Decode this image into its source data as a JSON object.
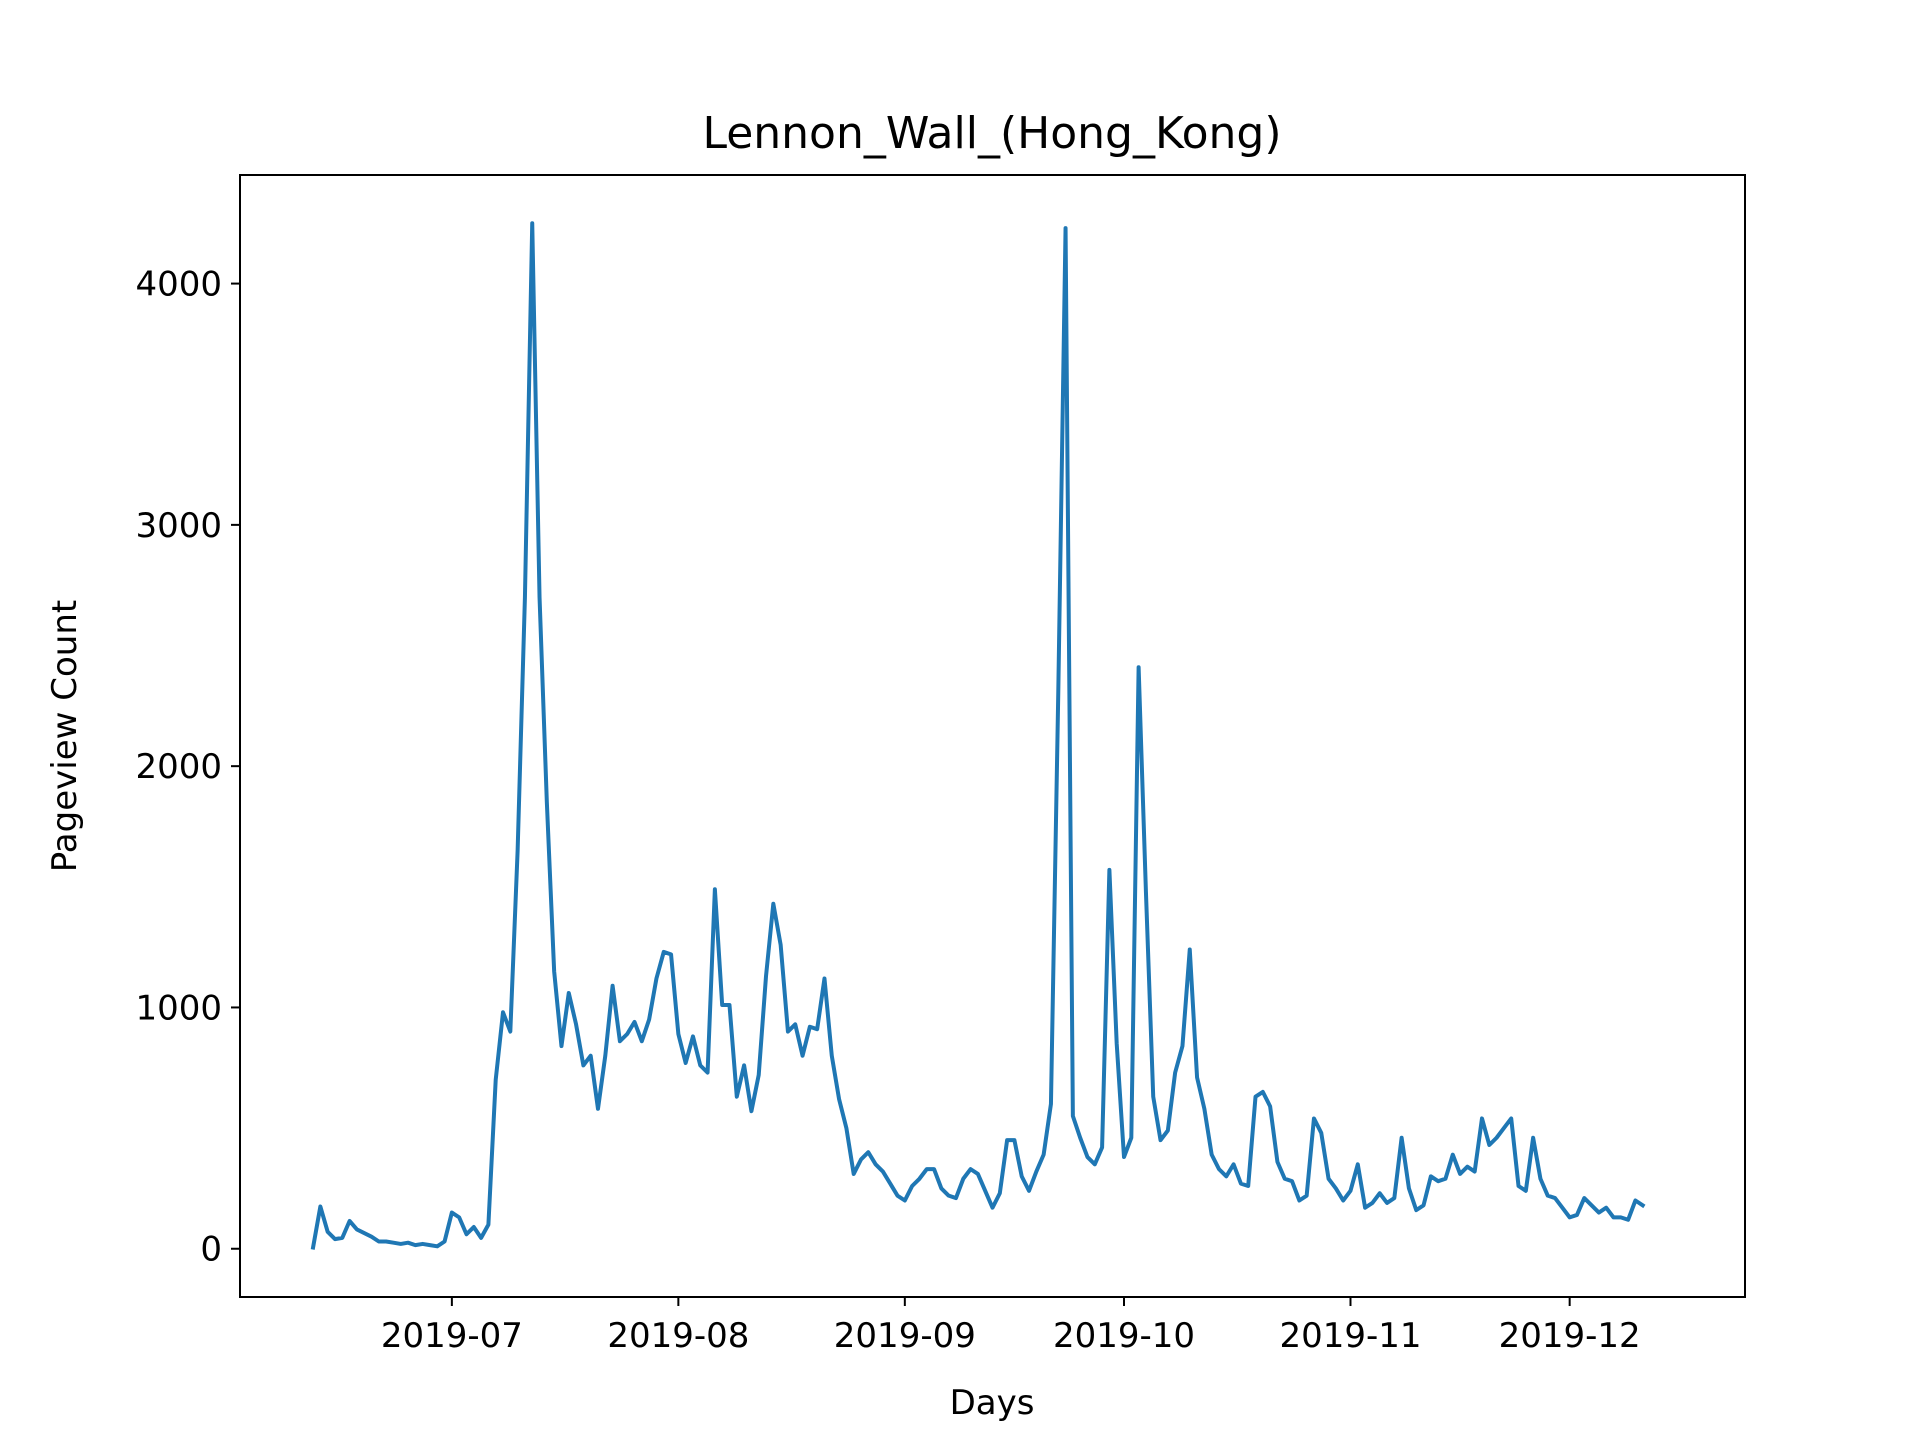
{
  "chart_data": {
    "type": "line",
    "title": "Lennon_Wall_(Hong_Kong)",
    "xlabel": "Days",
    "ylabel": "Pageview Count",
    "x_start": "2019-06-12",
    "x_step_days": 1,
    "xlim_days": [
      -10,
      196
    ],
    "ylim": [
      -200,
      4450
    ],
    "yticks": [
      0,
      1000,
      2000,
      3000,
      4000
    ],
    "xticks": [
      {
        "label": "2019-07",
        "day": 19
      },
      {
        "label": "2019-08",
        "day": 50
      },
      {
        "label": "2019-09",
        "day": 81
      },
      {
        "label": "2019-10",
        "day": 111
      },
      {
        "label": "2019-11",
        "day": 142
      },
      {
        "label": "2019-12",
        "day": 172
      }
    ],
    "grid": false,
    "line_color": "#1f77b4",
    "series": [
      {
        "name": "Lennon_Wall_(Hong_Kong)",
        "values": [
          5,
          175,
          70,
          40,
          45,
          115,
          80,
          65,
          50,
          30,
          30,
          25,
          20,
          25,
          15,
          20,
          15,
          10,
          30,
          150,
          130,
          60,
          90,
          45,
          100,
          700,
          980,
          900,
          1650,
          2700,
          4250,
          2700,
          1850,
          1150,
          840,
          1060,
          930,
          760,
          800,
          580,
          800,
          1090,
          860,
          890,
          940,
          860,
          950,
          1120,
          1230,
          1220,
          890,
          770,
          880,
          760,
          730,
          1490,
          1010,
          1010,
          630,
          760,
          570,
          720,
          1130,
          1430,
          1260,
          900,
          930,
          800,
          920,
          910,
          1120,
          800,
          620,
          500,
          310,
          370,
          400,
          350,
          320,
          270,
          220,
          200,
          260,
          290,
          330,
          330,
          250,
          220,
          210,
          290,
          330,
          310,
          240,
          170,
          230,
          450,
          450,
          300,
          240,
          320,
          390,
          600,
          2300,
          4230,
          550,
          460,
          380,
          350,
          420,
          1570,
          850,
          380,
          460,
          2410,
          1480,
          630,
          450,
          490,
          730,
          840,
          1240,
          710,
          580,
          390,
          330,
          300,
          350,
          270,
          260,
          630,
          650,
          590,
          360,
          290,
          280,
          200,
          220,
          540,
          480,
          290,
          250,
          200,
          240,
          350,
          170,
          190,
          230,
          190,
          210,
          460,
          250,
          160,
          180,
          300,
          280,
          290,
          390,
          310,
          340,
          320,
          540,
          430,
          460,
          500,
          540,
          260,
          240,
          460,
          290,
          220,
          210,
          170,
          130,
          140,
          210,
          180,
          150,
          170,
          130,
          130,
          120,
          200,
          180
        ]
      }
    ]
  }
}
